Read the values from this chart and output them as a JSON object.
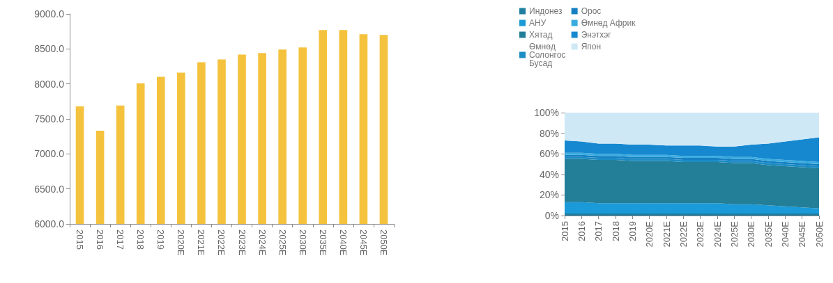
{
  "chart_data": [
    {
      "type": "bar",
      "categories": [
        "2015",
        "2016",
        "2017",
        "2018",
        "2019",
        "2020E",
        "2021E",
        "2022E",
        "2023E",
        "2024E",
        "2025E",
        "2030E",
        "2035E",
        "2040E",
        "2045E",
        "2050E"
      ],
      "values": [
        7680,
        7330,
        7690,
        8010,
        8100,
        8160,
        8310,
        8350,
        8420,
        8440,
        8490,
        8520,
        8770,
        8770,
        8710,
        8700
      ],
      "color": "#f4c23c",
      "ylim": [
        6000,
        9000
      ],
      "yticks": [
        {
          "value": 6000,
          "label": "6000.0"
        },
        {
          "value": 6500,
          "label": "6500.0"
        },
        {
          "value": 7000,
          "label": "7000.0"
        },
        {
          "value": 7500,
          "label": "7500.0"
        },
        {
          "value": 8000,
          "label": "8000.0"
        },
        {
          "value": 8500,
          "label": "8500.0"
        },
        {
          "value": 9000,
          "label": "9000.0"
        }
      ],
      "grid": false,
      "legend": false
    },
    {
      "type": "area",
      "stacked": true,
      "categories": [
        "2015",
        "2016",
        "2017",
        "2018",
        "2019",
        "2020E",
        "2021E",
        "2022E",
        "2023E",
        "2024E",
        "2025E",
        "2030E",
        "2035E",
        "2040E",
        "2045E",
        "2050E"
      ],
      "series": [
        {
          "name": "Индонез",
          "color": "#1f7fa0",
          "values": [
            2,
            2,
            2,
            2,
            2,
            2,
            2,
            2,
            2,
            2,
            2,
            2,
            2,
            2,
            2,
            2
          ]
        },
        {
          "name": "АНУ",
          "color": "#1a9ad8",
          "values": [
            11,
            11,
            10,
            10,
            10,
            10,
            10,
            10,
            10,
            10,
            9,
            9,
            8,
            7,
            6,
            5
          ]
        },
        {
          "name": "Хятад",
          "color": "#237e98",
          "values": [
            42,
            42,
            42,
            42,
            41,
            41,
            41,
            40,
            40,
            40,
            40,
            40,
            39,
            39,
            39,
            39
          ]
        },
        {
          "name": "Өмнөд Солонгос Бусад",
          "color": "#1b8cc4",
          "values": [
            2,
            2,
            2,
            2,
            2,
            2,
            2,
            2,
            2,
            2,
            2,
            2,
            2,
            2,
            2,
            2
          ]
        },
        {
          "name": "Орос",
          "color": "#1680c2",
          "values": [
            2,
            2,
            2,
            2,
            2,
            2,
            2,
            2,
            2,
            2,
            2,
            2,
            2,
            2,
            2,
            2
          ]
        },
        {
          "name": "Өмнөд Африк",
          "color": "#39acdf",
          "values": [
            2,
            2,
            2,
            2,
            2,
            2,
            2,
            2,
            2,
            2,
            2,
            2,
            2,
            2,
            2,
            2
          ]
        },
        {
          "name": "Энэтхэг",
          "color": "#1688d0",
          "values": [
            12,
            11,
            10,
            10,
            10,
            10,
            9,
            10,
            10,
            9,
            10,
            12,
            15,
            18,
            21,
            24
          ]
        },
        {
          "name": "Япон",
          "color": "#cfe8f6",
          "values": [
            27,
            28,
            30,
            30,
            31,
            31,
            32,
            32,
            32,
            33,
            33,
            31,
            30,
            28,
            26,
            24
          ]
        }
      ],
      "ylim": [
        0,
        100
      ],
      "yticks": [
        {
          "value": 0,
          "label": "0%"
        },
        {
          "value": 20,
          "label": "20%"
        },
        {
          "value": 40,
          "label": "40%"
        },
        {
          "value": 60,
          "label": "60%"
        },
        {
          "value": 80,
          "label": "80%"
        },
        {
          "value": 100,
          "label": "100%"
        }
      ],
      "grid": false,
      "legend": "top"
    }
  ]
}
